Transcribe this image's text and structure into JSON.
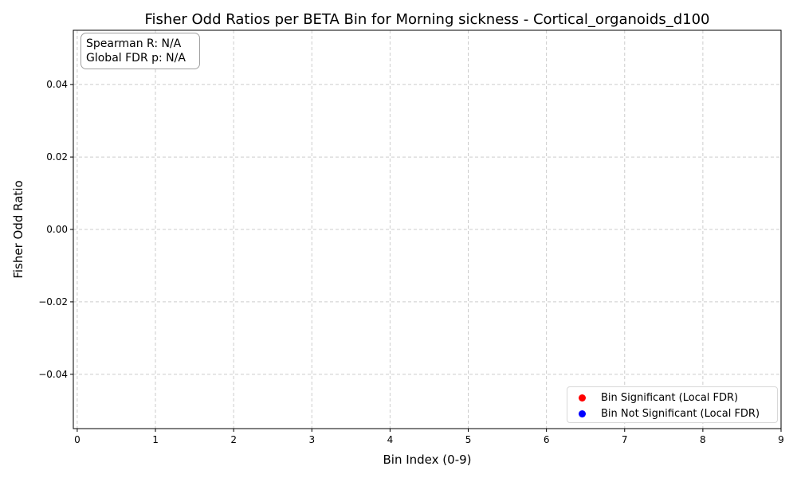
{
  "chart_data": {
    "type": "scatter",
    "title": "Fisher Odd Ratios per BETA Bin for Morning sickness - Cortical_organoids_d100",
    "xlabel": "Bin Index (0-9)",
    "ylabel": "Fisher Odd Ratio",
    "xlim": [
      -0.05,
      9
    ],
    "ylim": [
      -0.055,
      0.055
    ],
    "x_ticks": [
      0,
      1,
      2,
      3,
      4,
      5,
      6,
      7,
      8,
      9
    ],
    "x_tick_labels": [
      "0",
      "1",
      "2",
      "3",
      "4",
      "5",
      "6",
      "7",
      "8",
      "9"
    ],
    "y_ticks": [
      0.04,
      0.02,
      0.0,
      -0.02,
      -0.04
    ],
    "y_tick_labels": [
      "0.04",
      "0.02",
      "0.00",
      "−0.02",
      "−0.04"
    ],
    "grid": true,
    "legend_position": "lower-right",
    "series": [
      {
        "name": "Bin Significant (Local FDR)",
        "color": "#ff0000",
        "x": [],
        "y": []
      },
      {
        "name": "Bin Not Significant (Local FDR)",
        "color": "#0000ff",
        "x": [],
        "y": []
      }
    ],
    "annotation": {
      "spearman": "Spearman R: N/A",
      "global_fdr": "Global FDR p: N/A"
    }
  },
  "colors": {
    "grid": "#cccccc",
    "axis": "#000000",
    "significant": "#ff0000",
    "not_significant": "#0000ff"
  }
}
